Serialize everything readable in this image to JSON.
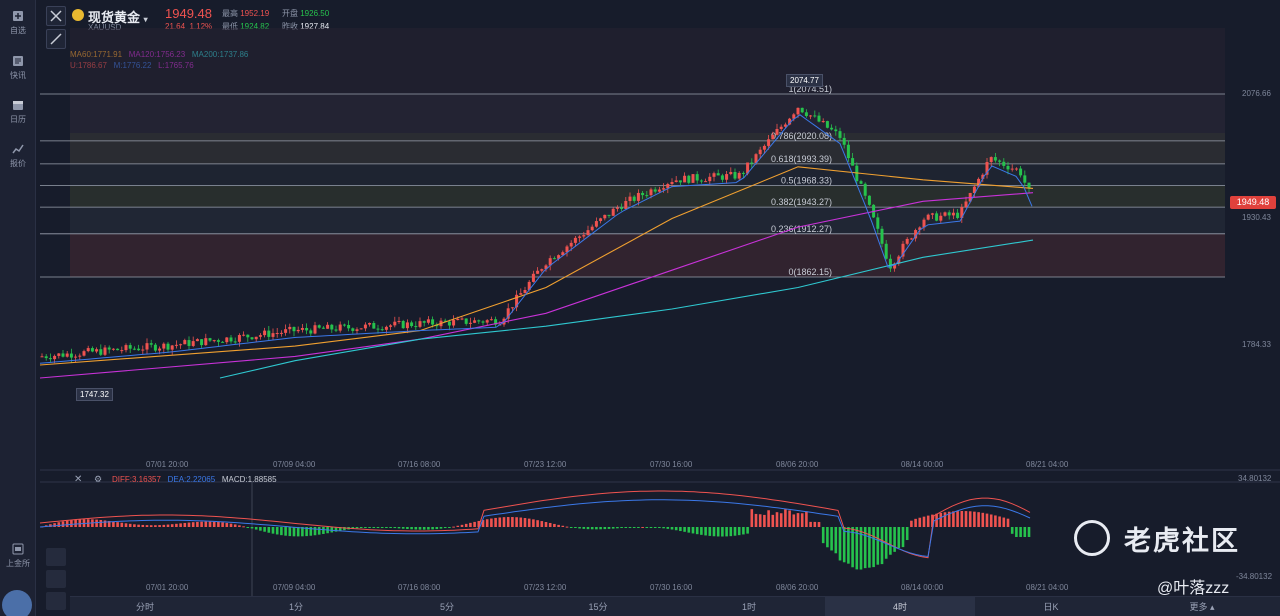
{
  "sidebar": {
    "items": [
      {
        "label": "自选",
        "icon": "bookmark-icon"
      },
      {
        "label": "快讯",
        "icon": "news-icon"
      },
      {
        "label": "日历",
        "icon": "calendar-icon"
      },
      {
        "label": "报价",
        "icon": "chart-line-icon"
      },
      {
        "label": "上金所",
        "icon": "exchange-icon"
      }
    ]
  },
  "header": {
    "title": "现货黄金",
    "symbol": "XAUUSD",
    "price": "1949.48",
    "change": "21.64",
    "change_pct": "1.12%",
    "high_label": "最高",
    "high": "1952.19",
    "open_label": "开盘",
    "open": "1926.50",
    "low_label": "最低",
    "low": "1924.82",
    "prev_close_label": "昨收",
    "prev_close": "1927.84"
  },
  "indicators": {
    "ma60": "MA60:1771.91",
    "ma120": "MA120:1756.23",
    "ma200": "MA200:1737.86",
    "boll_u": "U:1786.67",
    "boll_m": "M:1776.22",
    "boll_l": "L:1765.76"
  },
  "fib_levels": [
    {
      "label": "1(2074.51)",
      "value": 2074.51
    },
    {
      "label": "0.786(2020.08)",
      "value": 2020.08
    },
    {
      "label": "0.618(1993.39)",
      "value": 1993.39
    },
    {
      "label": "0.5(1968.33)",
      "value": 1968.33
    },
    {
      "label": "0.382(1943.27)",
      "value": 1943.27
    },
    {
      "label": "0.236(1912.27)",
      "value": 1912.27
    },
    {
      "label": "0(1862.15)",
      "value": 1862.15
    }
  ],
  "price_axis": [
    "2076.66",
    "1930.43",
    "1784.33"
  ],
  "last_price_tag": "1949.48",
  "peak_label": "2074.77",
  "low_label": "1747.32",
  "time_axis": [
    "07/01 20:00",
    "07/09 04:00",
    "07/16 08:00",
    "07/23 12:00",
    "07/30 16:00",
    "08/06 20:00",
    "08/14 00:00",
    "08/21 04:00"
  ],
  "macd": {
    "diff": "DIFF:3.16357",
    "dea": "DEA:2.22065",
    "macd": "MACD:1.88585",
    "axis_top": "34.80132",
    "axis_bottom": "-34.80132"
  },
  "timeframes": [
    "分时",
    "1分",
    "5分",
    "15分",
    "1时",
    "4时",
    "日K",
    "更多"
  ],
  "active_timeframe": "4时",
  "watermark": "老虎社区",
  "watermark_user": "@叶落zzz",
  "colors": {
    "up": "#ef5350",
    "down": "#26c24d",
    "ma60": "#f0a030",
    "ma120": "#c832d8",
    "ma200": "#2fc8d0",
    "boll_mid": "#3b78e8"
  },
  "chart_data": {
    "type": "candlestick",
    "title": "现货黄金 XAUUSD 4时",
    "x": [
      "07/01 20:00",
      "07/09 04:00",
      "07/16 08:00",
      "07/23 12:00",
      "07/30 16:00",
      "08/06 20:00",
      "08/14 00:00",
      "08/21 04:00"
    ],
    "close": [
      1775,
      1808,
      1810,
      1890,
      1975,
      2040,
      1920,
      1949.48
    ],
    "ylim": [
      1747.32,
      2076.66
    ],
    "series": [
      {
        "name": "MA60",
        "values": [
          1760,
          1782,
          1800,
          1850,
          1930,
          1990,
          1975,
          1965
        ]
      },
      {
        "name": "MA120",
        "values": [
          1745,
          1770,
          1790,
          1820,
          1870,
          1920,
          1950,
          1960
        ]
      },
      {
        "name": "MA200",
        "values": [
          1745,
          1765,
          1790,
          1805,
          1825,
          1850,
          1885,
          1905
        ]
      }
    ]
  }
}
